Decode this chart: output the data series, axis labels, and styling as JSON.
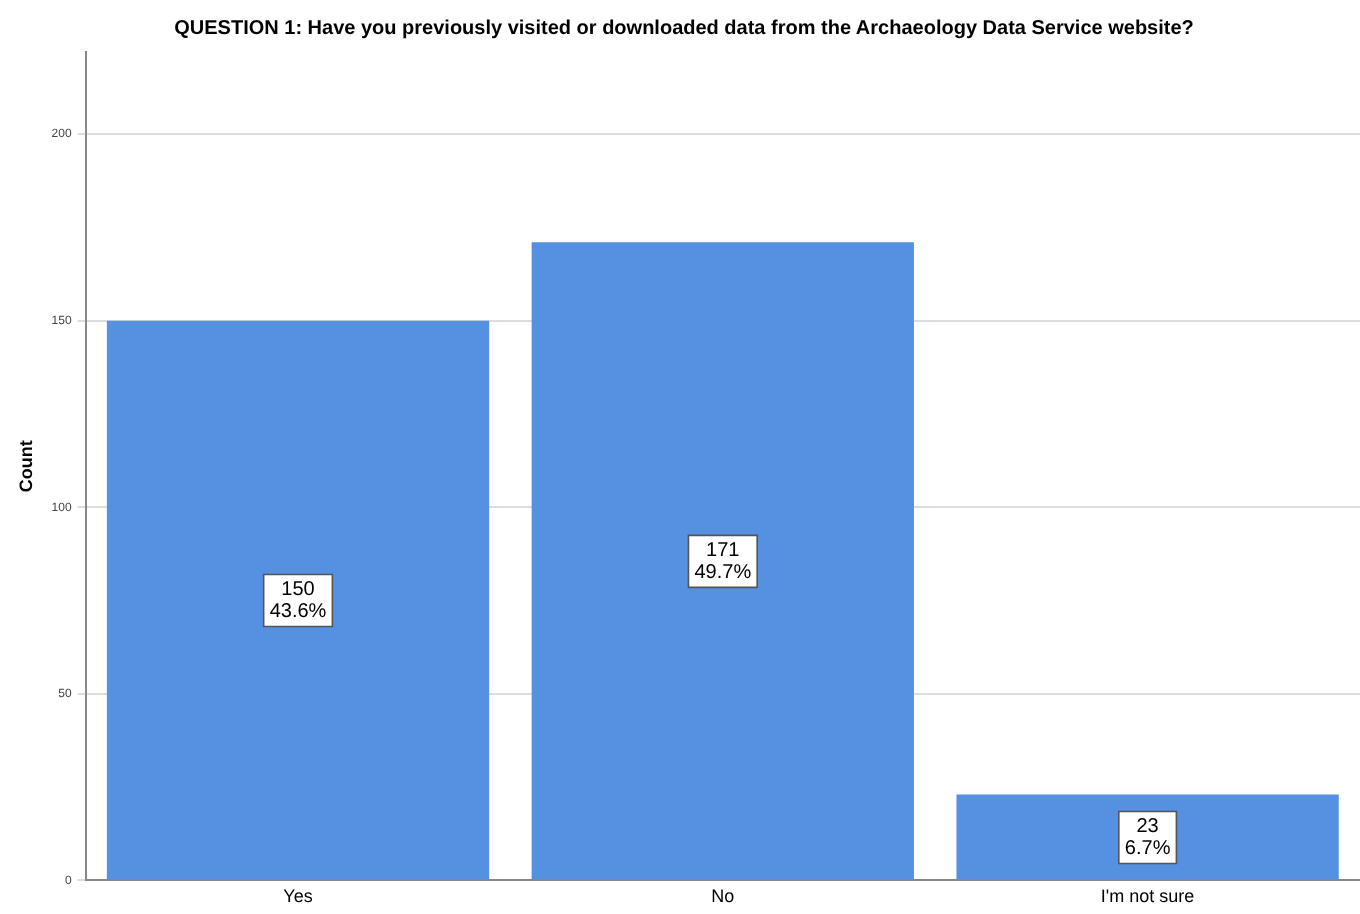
{
  "chart_data": {
    "type": "bar",
    "title": "QUESTION 1: Have you previously visited or downloaded data from the Archaeology Data Service website?",
    "ylabel": "Count",
    "categories": [
      "Yes",
      "No",
      "I'm not sure"
    ],
    "values": [
      150,
      171,
      23
    ],
    "value_labels": [
      "150\n43.6%",
      "171\n49.7%",
      "23\n6.7%"
    ],
    "color": "#5591e0",
    "ylim": [
      0,
      222
    ],
    "yticks": [
      0,
      50,
      100,
      150,
      200
    ],
    "grid": "y"
  }
}
